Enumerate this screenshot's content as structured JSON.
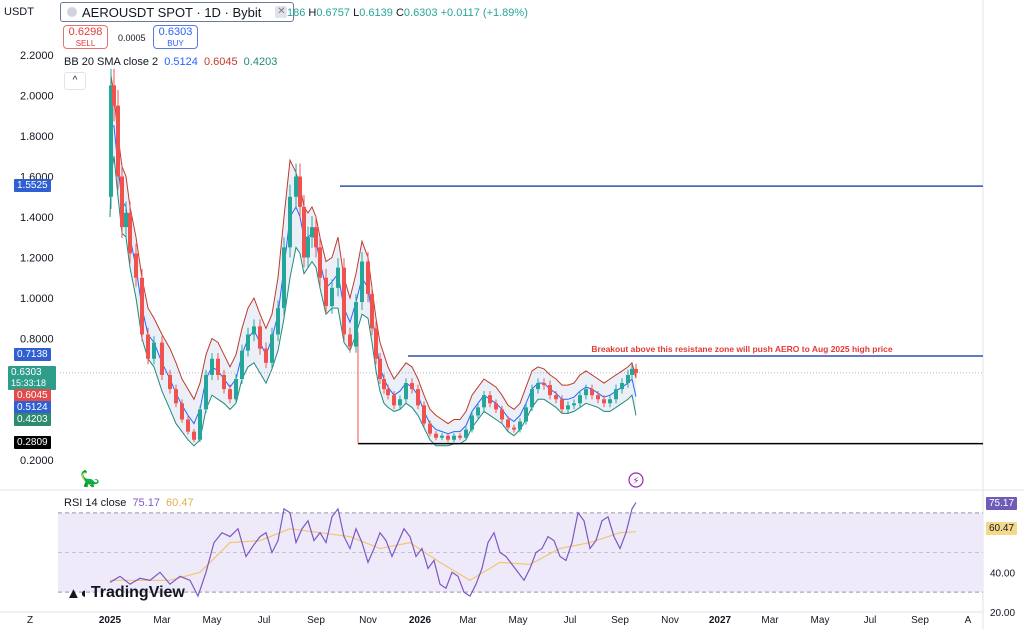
{
  "header": {
    "currency": "USDT",
    "symbol_title": "AEROUSDT SPOT · 1D · Bybit",
    "ohlc_open_partial": "186",
    "ohlc_h_label": "H",
    "ohlc_h": "0.6757",
    "ohlc_l_label": "L",
    "ohlc_l": "0.6139",
    "ohlc_c_label": "C",
    "ohlc_c": "0.6303",
    "change": "+0.0117 (+1.89%)",
    "sell_price": "0.6298",
    "sell_label": "SELL",
    "buy_price": "0.6303",
    "buy_label": "BUY",
    "spread": "0.0005",
    "collapse_glyph": "^"
  },
  "indicators": {
    "bb_label": "BB 20 SMA close 2",
    "bb_basis": "0.5124",
    "bb_upper": "0.6045",
    "bb_lower": "0.4203",
    "rsi_label": "RSI 14 close",
    "rsi_value": "75.17",
    "rsi_ma": "60.47"
  },
  "price_tags": {
    "res_high": "1.5525",
    "res_zone": "0.7138",
    "last_price": "0.6303",
    "countdown": "15:33:18",
    "bb_upper": "0.6045",
    "bb_basis": "0.5124",
    "bb_lower": "0.4203",
    "support": "0.2809",
    "rsi_value": "75.17",
    "rsi_ma": "60.47"
  },
  "colors": {
    "up": "#26a69a",
    "down": "#ef5350",
    "bb_upper": "#c0392b",
    "bb_basis": "#2962ff",
    "bb_lower": "#1e8a7a",
    "bb_fill": "#e9eef7",
    "resistance": "#2f4fb5",
    "support": "#000000",
    "annotation": "#e53935",
    "rsi": "#7e57c2",
    "rsi_ma": "#f0c674",
    "rsi_band": "#efeaf9"
  },
  "annotation": "Breakout above this resistane zone will push AERO to Aug 2025 high price",
  "brand": "TradingView",
  "chart_data": {
    "type": "line",
    "price_axis": {
      "ticks": [
        "2.2000",
        "2.0000",
        "1.8000",
        "1.6000",
        "1.4000",
        "1.2000",
        "1.0000",
        "0.8000",
        "0.2000"
      ],
      "min": 0.2,
      "max": 2.2
    },
    "rsi_axis": {
      "ticks": [
        "40.00",
        "20.00"
      ],
      "min": 20,
      "max": 80,
      "bands": [
        70,
        30
      ]
    },
    "time_axis": [
      "Z",
      "2025",
      "Mar",
      "May",
      "Jul",
      "Sep",
      "Nov",
      "2026",
      "Mar",
      "May",
      "Jul",
      "Sep",
      "Nov",
      "2027",
      "Mar",
      "May",
      "Jul",
      "Sep",
      "A"
    ],
    "time_index": [
      0,
      80,
      132,
      182,
      234,
      286,
      338,
      390,
      438,
      488,
      540,
      590,
      640,
      690,
      740,
      790,
      840,
      890,
      938
    ],
    "price_series": {
      "name": "AEROUSDT",
      "x": [
        0,
        1,
        4,
        8,
        12,
        16,
        20,
        26,
        32,
        38,
        44,
        52,
        60,
        66,
        72,
        78,
        84,
        90,
        96,
        102,
        108,
        114,
        120,
        126,
        132,
        138,
        144,
        150,
        156,
        162,
        168,
        174,
        180,
        186,
        190,
        194,
        198,
        202,
        206,
        210,
        216,
        222,
        228,
        234,
        240,
        246,
        252,
        258,
        262,
        266,
        270,
        274,
        278,
        284,
        290,
        296,
        302,
        308,
        314,
        320,
        326,
        332,
        338,
        344,
        350,
        356,
        362,
        368,
        374,
        380,
        386,
        392,
        398,
        404,
        410,
        416,
        422,
        428,
        434,
        440,
        446,
        452,
        458,
        464,
        470,
        476,
        482,
        488,
        494,
        500,
        506,
        512,
        518,
        522,
        526
      ],
      "values": [
        1.5,
        2.05,
        1.95,
        1.6,
        1.35,
        1.42,
        1.22,
        1.1,
        0.82,
        0.7,
        0.78,
        0.62,
        0.55,
        0.48,
        0.4,
        0.34,
        0.3,
        0.45,
        0.62,
        0.7,
        0.62,
        0.55,
        0.5,
        0.6,
        0.74,
        0.82,
        0.86,
        0.75,
        0.68,
        0.82,
        0.95,
        1.25,
        1.5,
        1.6,
        1.45,
        1.2,
        1.3,
        1.35,
        1.25,
        1.1,
        0.96,
        1.05,
        1.15,
        0.82,
        0.76,
        0.98,
        1.18,
        1.02,
        0.85,
        0.7,
        0.6,
        0.55,
        0.52,
        0.47,
        0.5,
        0.58,
        0.55,
        0.47,
        0.38,
        0.33,
        0.31,
        0.32,
        0.3,
        0.32,
        0.31,
        0.35,
        0.42,
        0.46,
        0.52,
        0.48,
        0.45,
        0.4,
        0.36,
        0.35,
        0.39,
        0.46,
        0.55,
        0.58,
        0.57,
        0.52,
        0.5,
        0.45,
        0.47,
        0.48,
        0.52,
        0.55,
        0.52,
        0.5,
        0.48,
        0.5,
        0.55,
        0.58,
        0.62,
        0.65,
        0.63
      ]
    },
    "bb_upper": [
      1.6,
      2.1,
      2.0,
      1.8,
      1.65,
      1.6,
      1.45,
      1.3,
      1.1,
      0.95,
      0.9,
      0.82,
      0.75,
      0.68,
      0.6,
      0.55,
      0.5,
      0.58,
      0.72,
      0.8,
      0.78,
      0.72,
      0.66,
      0.72,
      0.85,
      0.95,
      1.0,
      0.92,
      0.85,
      0.92,
      1.1,
      1.4,
      1.68,
      1.62,
      1.55,
      1.45,
      1.42,
      1.45,
      1.4,
      1.3,
      1.18,
      1.2,
      1.3,
      1.1,
      1.0,
      1.12,
      1.28,
      1.2,
      1.05,
      0.9,
      0.78,
      0.72,
      0.66,
      0.6,
      0.64,
      0.68,
      0.66,
      0.6,
      0.52,
      0.45,
      0.42,
      0.4,
      0.38,
      0.4,
      0.4,
      0.44,
      0.52,
      0.56,
      0.6,
      0.58,
      0.56,
      0.52,
      0.47,
      0.45,
      0.48,
      0.56,
      0.64,
      0.66,
      0.65,
      0.62,
      0.6,
      0.57,
      0.57,
      0.58,
      0.62,
      0.64,
      0.62,
      0.6,
      0.58,
      0.6,
      0.62,
      0.64,
      0.66,
      0.68,
      0.6045
    ],
    "bb_basis": [
      1.5,
      1.85,
      1.85,
      1.65,
      1.48,
      1.45,
      1.3,
      1.15,
      0.95,
      0.82,
      0.78,
      0.68,
      0.6,
      0.53,
      0.47,
      0.42,
      0.38,
      0.45,
      0.6,
      0.66,
      0.64,
      0.6,
      0.56,
      0.6,
      0.72,
      0.8,
      0.84,
      0.78,
      0.72,
      0.8,
      0.92,
      1.15,
      1.4,
      1.45,
      1.4,
      1.3,
      1.3,
      1.32,
      1.28,
      1.18,
      1.05,
      1.08,
      1.12,
      0.95,
      0.88,
      0.98,
      1.1,
      1.05,
      0.92,
      0.78,
      0.66,
      0.6,
      0.56,
      0.52,
      0.54,
      0.58,
      0.56,
      0.52,
      0.44,
      0.38,
      0.35,
      0.34,
      0.33,
      0.34,
      0.34,
      0.37,
      0.44,
      0.48,
      0.52,
      0.5,
      0.48,
      0.45,
      0.41,
      0.39,
      0.42,
      0.48,
      0.55,
      0.58,
      0.58,
      0.55,
      0.53,
      0.5,
      0.5,
      0.51,
      0.54,
      0.56,
      0.55,
      0.53,
      0.51,
      0.52,
      0.54,
      0.56,
      0.58,
      0.6,
      0.5124
    ],
    "bb_lower": [
      1.4,
      1.6,
      1.7,
      1.5,
      1.32,
      1.3,
      1.15,
      1.0,
      0.8,
      0.7,
      0.66,
      0.54,
      0.45,
      0.38,
      0.34,
      0.3,
      0.27,
      0.3,
      0.45,
      0.52,
      0.5,
      0.48,
      0.45,
      0.48,
      0.6,
      0.66,
      0.68,
      0.63,
      0.58,
      0.65,
      0.74,
      0.9,
      1.1,
      1.25,
      1.22,
      1.12,
      1.15,
      1.18,
      1.15,
      1.05,
      0.92,
      0.95,
      0.95,
      0.78,
      0.74,
      0.82,
      0.92,
      0.9,
      0.78,
      0.64,
      0.54,
      0.48,
      0.46,
      0.44,
      0.45,
      0.48,
      0.46,
      0.42,
      0.36,
      0.3,
      0.27,
      0.27,
      0.27,
      0.28,
      0.28,
      0.3,
      0.36,
      0.4,
      0.44,
      0.42,
      0.4,
      0.38,
      0.34,
      0.32,
      0.35,
      0.4,
      0.46,
      0.5,
      0.5,
      0.48,
      0.46,
      0.43,
      0.43,
      0.44,
      0.46,
      0.48,
      0.47,
      0.46,
      0.44,
      0.44,
      0.46,
      0.48,
      0.5,
      0.52,
      0.4203
    ],
    "rsi_series": {
      "name": "RSI",
      "x": [
        0,
        10,
        20,
        30,
        40,
        50,
        60,
        70,
        80,
        88,
        96,
        104,
        112,
        120,
        128,
        136,
        144,
        150,
        156,
        162,
        168,
        174,
        180,
        186,
        192,
        198,
        204,
        210,
        216,
        222,
        228,
        234,
        240,
        246,
        252,
        258,
        264,
        270,
        276,
        282,
        288,
        294,
        300,
        306,
        312,
        318,
        324,
        330,
        336,
        342,
        348,
        354,
        360,
        366,
        372,
        378,
        384,
        390,
        396,
        402,
        408,
        414,
        420,
        426,
        432,
        438,
        444,
        450,
        456,
        462,
        468,
        474,
        480,
        486,
        492,
        498,
        504,
        510,
        516,
        522,
        526
      ],
      "values": [
        35,
        38,
        34,
        37,
        36,
        40,
        34,
        38,
        36,
        28,
        40,
        55,
        60,
        58,
        62,
        48,
        54,
        58,
        60,
        50,
        56,
        72,
        70,
        55,
        62,
        66,
        56,
        60,
        55,
        68,
        72,
        58,
        52,
        62,
        55,
        45,
        52,
        60,
        56,
        48,
        55,
        62,
        58,
        48,
        52,
        42,
        46,
        34,
        32,
        40,
        38,
        30,
        28,
        34,
        42,
        55,
        60,
        50,
        48,
        44,
        40,
        36,
        42,
        50,
        52,
        58,
        56,
        48,
        46,
        55,
        70,
        66,
        52,
        56,
        66,
        68,
        58,
        52,
        60,
        72,
        75.17
      ]
    },
    "rsi_ma_series": {
      "name": "RSI MA",
      "x": [
        0,
        30,
        60,
        90,
        120,
        150,
        180,
        210,
        240,
        270,
        300,
        330,
        360,
        390,
        420,
        450,
        480,
        510,
        526
      ],
      "values": [
        36,
        36,
        36,
        40,
        55,
        56,
        62,
        60,
        58,
        52,
        55,
        45,
        36,
        45,
        44,
        52,
        55,
        60,
        60.47
      ]
    },
    "resistance_levels": [
      1.5525,
      0.7138
    ],
    "support_level": 0.2809
  }
}
